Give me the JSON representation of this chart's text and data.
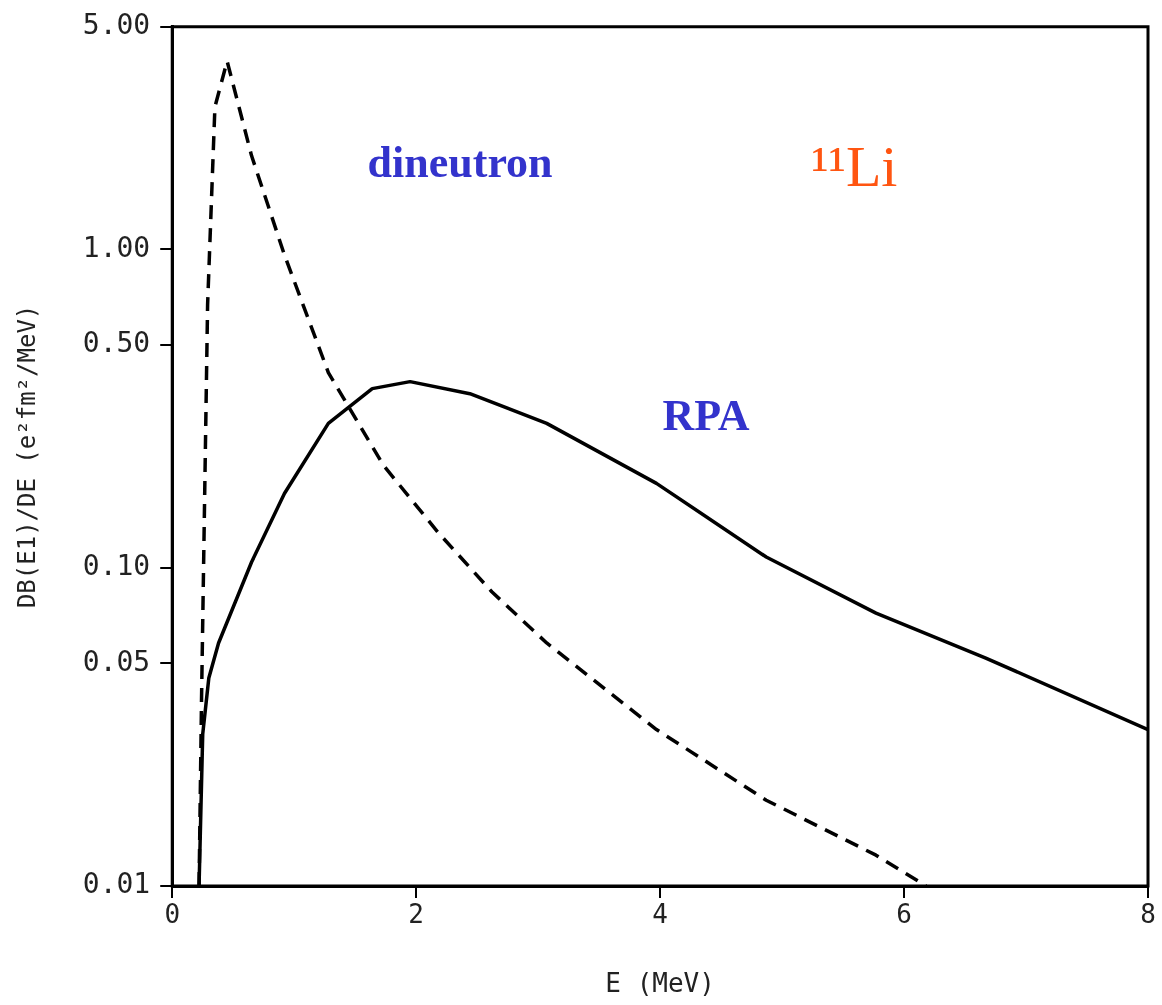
{
  "chart_data": {
    "type": "line",
    "xlabel": "E (MeV)",
    "ylabel": "DB(E1)/DE (e²fm²/MeV)",
    "log": "y",
    "xlim": [
      0,
      8
    ],
    "xticks": [
      0,
      2,
      4,
      6,
      8
    ],
    "ylim": [
      0.01,
      5
    ],
    "yticks": [
      {
        "value": 0.01,
        "label": "0.01"
      },
      {
        "value": 0.05,
        "label": "0.05"
      },
      {
        "value": 0.1,
        "label": "0.10"
      },
      {
        "value": 0.5,
        "label": "0.50"
      },
      {
        "value": 1,
        "label": "1.00"
      },
      {
        "value": 5,
        "label": "5.00"
      }
    ],
    "grid": false,
    "legend": false,
    "marker": "none",
    "annotations": [
      "¹¹Li"
    ],
    "series": [
      {
        "name": "dineutron",
        "color": "#000000",
        "line_style": "dashed",
        "x": [
          0.22,
          0.24,
          0.29,
          0.35,
          0.45,
          0.65,
          0.92,
          1.28,
          1.73,
          2.18,
          2.62,
          3.07,
          3.97,
          4.87,
          5.77,
          6.18
        ],
        "values": [
          0.01,
          0.038,
          0.67,
          2.8,
          3.9,
          1.97,
          0.96,
          0.41,
          0.21,
          0.129,
          0.084,
          0.058,
          0.031,
          0.0186,
          0.0125,
          0.01
        ]
      },
      {
        "name": "RPA",
        "color": "#000000",
        "line_style": "solid",
        "x": [
          0.22,
          0.25,
          0.3,
          0.38,
          0.65,
          0.92,
          1.28,
          1.64,
          1.95,
          2.44,
          3.07,
          3.97,
          4.87,
          5.77,
          6.67,
          8
        ],
        "values": [
          0.01,
          0.03,
          0.045,
          0.058,
          0.104,
          0.171,
          0.284,
          0.365,
          0.384,
          0.352,
          0.284,
          0.184,
          0.108,
          0.072,
          0.052,
          0.031
        ]
      }
    ]
  }
}
